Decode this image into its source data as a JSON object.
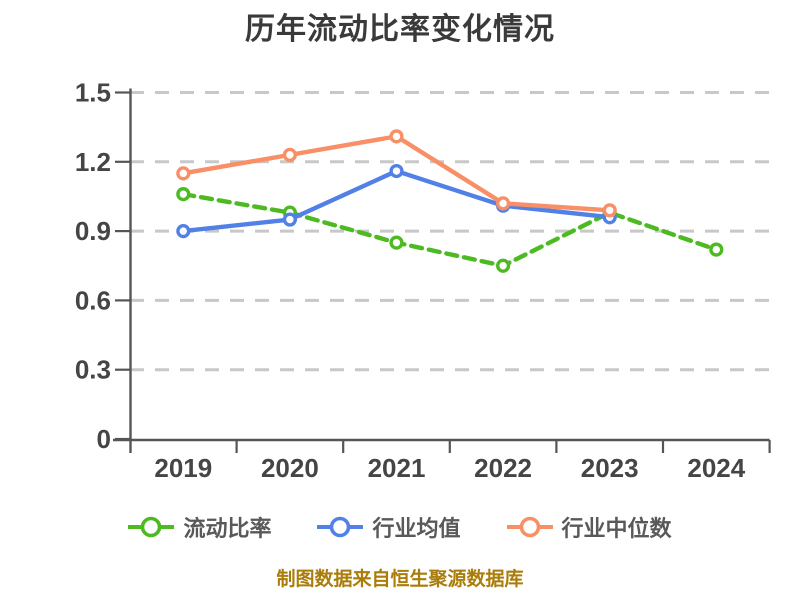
{
  "title": "历年流动比率变化情况",
  "footer": "制图数据来自恒生聚源数据库",
  "colors": {
    "title_text": "#3a3a3a",
    "tick_label": "#454545",
    "axis_line": "#555555",
    "gridline": "#c8c8c8",
    "legend_label": "#595959",
    "footer_text": "#aa7d0a",
    "marker_fill": "#ffffff",
    "series_current_ratio": "#4dba21",
    "series_industry_avg": "#5181e6",
    "series_industry_median": "#f98f66"
  },
  "chart_data": {
    "type": "line",
    "title": "历年流动比率变化情况",
    "categories": [
      "2019",
      "2020",
      "2021",
      "2022",
      "2023",
      "2024"
    ],
    "xlabel": "",
    "ylabel": "",
    "ylim": [
      0,
      1.5
    ],
    "y_ticks": [
      0,
      0.3,
      0.6,
      0.9,
      1.2,
      1.5
    ],
    "grid": "horizontal-dashed",
    "legend_position": "bottom",
    "series": [
      {
        "name": "流动比率",
        "color": "#4dba21",
        "line_style": "dashed",
        "marker": "circle-white-fill",
        "values": [
          1.06,
          0.98,
          0.85,
          0.75,
          0.98,
          0.82
        ]
      },
      {
        "name": "行业均值",
        "color": "#5181e6",
        "line_style": "solid",
        "marker": "circle-white-fill",
        "values": [
          0.9,
          0.95,
          1.16,
          1.01,
          0.96,
          null
        ]
      },
      {
        "name": "行业中位数",
        "color": "#f98f66",
        "line_style": "solid",
        "marker": "circle-white-fill",
        "values": [
          1.15,
          1.23,
          1.31,
          1.02,
          0.99,
          null
        ]
      }
    ]
  },
  "legend": {
    "items": [
      {
        "label": "流动比率",
        "color": "#4dba21"
      },
      {
        "label": "行业均值",
        "color": "#5181e6"
      },
      {
        "label": "行业中位数",
        "color": "#f98f66"
      }
    ]
  }
}
